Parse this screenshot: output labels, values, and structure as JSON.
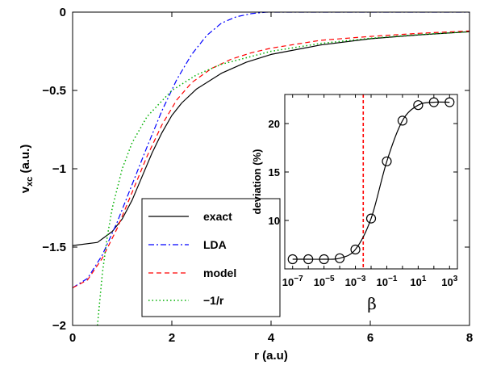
{
  "chart_data": [
    {
      "type": "line",
      "xlabel": "r (a.u)",
      "ylabel_main": "v",
      "ylabel_sub": "xc",
      "ylabel_unit": "(a.u.)",
      "xlim": [
        0,
        8
      ],
      "ylim": [
        -2,
        0
      ],
      "xticks": [
        0,
        2,
        4,
        6,
        8
      ],
      "yticks": [
        0,
        -0.5,
        -1,
        -1.5,
        -2
      ],
      "xtick_labels": [
        "0",
        "2",
        "4",
        "6",
        "8"
      ],
      "ytick_labels": [
        "0",
        "−0.5",
        "−1",
        "−1.5",
        "−2"
      ],
      "grid": false,
      "legend_position": "lower-center",
      "series": [
        {
          "name": "exact",
          "color": "#000000",
          "dash": "solid",
          "x": [
            0,
            0.5,
            0.8,
            1.0,
            1.2,
            1.4,
            1.6,
            1.8,
            2.0,
            2.2,
            2.5,
            3.0,
            3.5,
            4.0,
            5.0,
            6.0,
            7.0,
            8.0
          ],
          "y": [
            -1.49,
            -1.47,
            -1.4,
            -1.32,
            -1.2,
            -1.05,
            -0.9,
            -0.77,
            -0.66,
            -0.58,
            -0.49,
            -0.39,
            -0.32,
            -0.27,
            -0.21,
            -0.17,
            -0.145,
            -0.125
          ]
        },
        {
          "name": "LDA",
          "color": "#0000ff",
          "dash": "dashdot",
          "x": [
            0,
            0.3,
            0.6,
            0.9,
            1.2,
            1.5,
            1.8,
            2.1,
            2.4,
            2.7,
            3.0,
            3.3,
            3.6,
            3.9,
            8.0
          ],
          "y": [
            -1.76,
            -1.7,
            -1.55,
            -1.34,
            -1.1,
            -0.86,
            -0.63,
            -0.43,
            -0.27,
            -0.15,
            -0.07,
            -0.03,
            -0.01,
            0.0,
            0.0
          ]
        },
        {
          "name": "model",
          "color": "#ff0000",
          "dash": "dashed",
          "x": [
            0,
            0.3,
            0.6,
            0.9,
            1.2,
            1.5,
            1.8,
            2.1,
            2.4,
            2.8,
            3.2,
            3.6,
            4.0,
            5.0,
            6.0,
            7.0,
            8.0
          ],
          "y": [
            -1.76,
            -1.71,
            -1.57,
            -1.38,
            -1.15,
            -0.92,
            -0.72,
            -0.56,
            -0.45,
            -0.36,
            -0.3,
            -0.26,
            -0.23,
            -0.18,
            -0.155,
            -0.135,
            -0.12
          ]
        },
        {
          "name": "−1/r",
          "color": "#00b000",
          "dash": "dotted",
          "x": [
            0.5,
            0.6,
            0.7,
            0.8,
            1.0,
            1.2,
            1.5,
            2.0,
            2.5,
            3.0,
            4.0,
            5.0,
            6.0,
            7.0,
            8.0
          ],
          "y": [
            -2.0,
            -1.667,
            -1.429,
            -1.25,
            -1.0,
            -0.833,
            -0.667,
            -0.5,
            -0.4,
            -0.333,
            -0.25,
            -0.2,
            -0.167,
            -0.143,
            -0.125
          ]
        }
      ]
    },
    {
      "type": "line",
      "xlabel": "β",
      "ylabel": "deviation (%)",
      "xscale": "log",
      "xlim_exp": [
        -7.5,
        3.5
      ],
      "ylim": [
        5,
        23
      ],
      "xtick_exps": [
        -7,
        -5,
        -3,
        -1,
        1,
        3
      ],
      "xtick_base": "10",
      "xtick_sups": [
        "−7",
        "−5",
        "−3",
        "−1",
        "1",
        "3"
      ],
      "yticks": [
        10,
        15,
        20
      ],
      "ytick_labels": [
        "10",
        "15",
        "20"
      ],
      "vline_exp": -2.5,
      "vline_color": "#ff0000",
      "series": [
        {
          "name": "",
          "color": "#000000",
          "marker": "circle",
          "x_exp": [
            -7,
            -6,
            -5,
            -4,
            -3,
            -2,
            -1,
            0,
            1,
            2,
            3
          ],
          "y": [
            6.0,
            6.0,
            6.0,
            6.1,
            7.0,
            10.2,
            16.1,
            20.3,
            21.9,
            22.2,
            22.2
          ]
        }
      ]
    }
  ]
}
